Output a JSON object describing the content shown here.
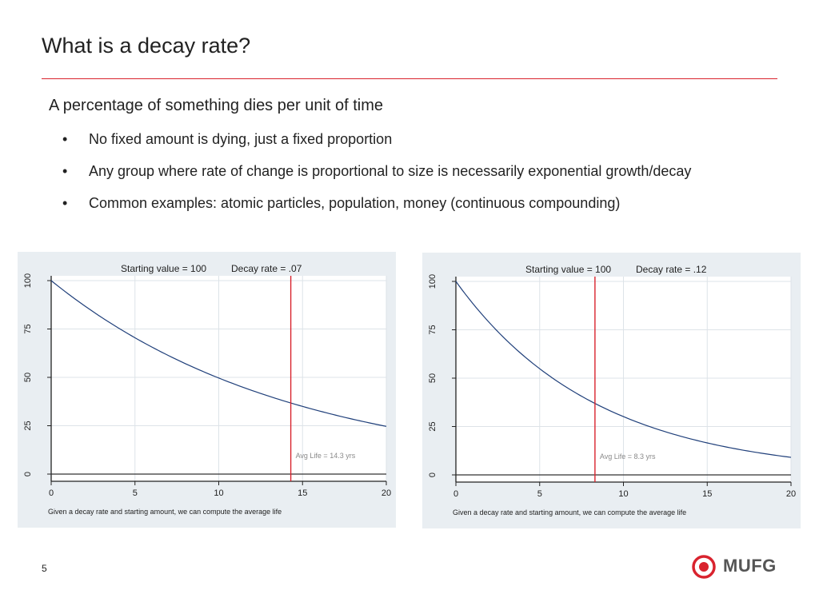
{
  "slide": {
    "title": "What is a decay rate?",
    "lead": "A percentage of something dies per unit of time",
    "bullets": [
      "No fixed amount is dying, just a fixed proportion",
      "Any group where rate of change is proportional to size is necessarily exponential growth/decay",
      "Common examples: atomic particles, population, money (continuous compounding)"
    ],
    "bullet_glyph": "•",
    "page_number": "5"
  },
  "logo": {
    "text": "MUFG",
    "color": "#d9232e"
  },
  "colors": {
    "accent": "#d9232e",
    "curve": "#1f3f7a",
    "panel": "#e9eef2",
    "grid": "#dde3e8"
  },
  "chart_data": [
    {
      "type": "line",
      "header_left": "Starting value = 100",
      "header_right": "Decay rate = .07",
      "caption": "Given a decay rate and starting amount, we can compute the average life",
      "annotation": "Avg Life = 14.3 yrs",
      "starting_value": 100,
      "decay_rate": 0.07,
      "avg_life": 14.3,
      "xlim": [
        0,
        20
      ],
      "ylim": [
        0,
        100
      ],
      "x_ticks": [
        "0",
        "5",
        "10",
        "15",
        "20"
      ],
      "y_ticks": [
        "0",
        "25",
        "50",
        "75",
        "100"
      ],
      "x": [
        0,
        2,
        4,
        6,
        8,
        10,
        12,
        14,
        16,
        18,
        20
      ],
      "y": [
        100,
        86.9,
        75.6,
        65.7,
        57.1,
        49.7,
        43.2,
        37.5,
        32.6,
        28.4,
        24.7
      ]
    },
    {
      "type": "line",
      "header_left": "Starting value = 100",
      "header_right": "Decay rate = .12",
      "caption": "Given a decay rate and starting amount, we can compute the average life",
      "annotation": "Avg Life = 8.3 yrs",
      "starting_value": 100,
      "decay_rate": 0.12,
      "avg_life": 8.3,
      "xlim": [
        0,
        20
      ],
      "ylim": [
        0,
        100
      ],
      "x_ticks": [
        "0",
        "5",
        "10",
        "15",
        "20"
      ],
      "y_ticks": [
        "0",
        "25",
        "50",
        "75",
        "100"
      ],
      "x": [
        0,
        2,
        4,
        6,
        8,
        10,
        12,
        14,
        16,
        18,
        20
      ],
      "y": [
        100,
        78.7,
        61.9,
        48.7,
        38.3,
        30.1,
        23.7,
        18.6,
        14.7,
        11.5,
        9.1
      ]
    }
  ]
}
